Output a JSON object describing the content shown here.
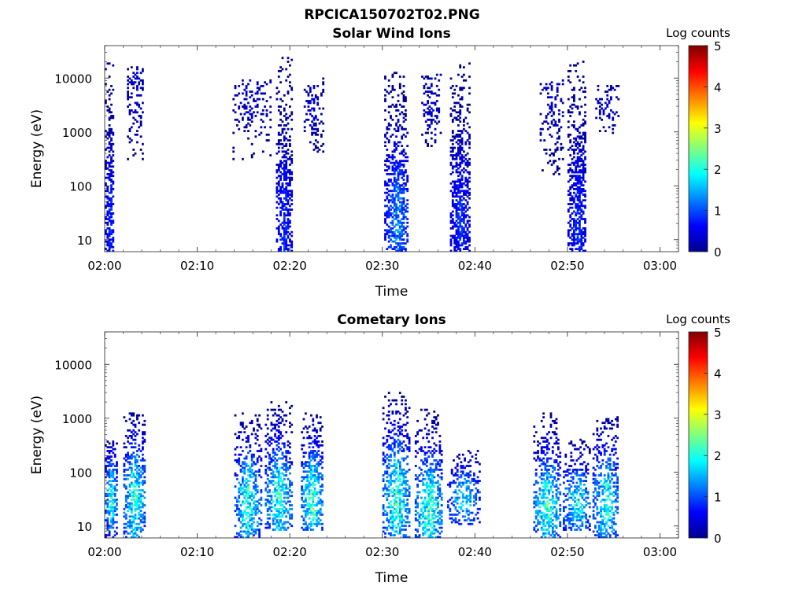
{
  "figure_title": "RPCICA150702T02.PNG",
  "chart_data": [
    {
      "type": "heatmap",
      "title": "Solar Wind Ions",
      "xlabel": "Time",
      "ylabel": "Energy (eV)",
      "x_tick_labels": [
        "02:00",
        "02:10",
        "02:20",
        "02:30",
        "02:40",
        "02:50",
        "03:00"
      ],
      "x_tick_minutes": [
        0,
        10,
        20,
        30,
        40,
        50,
        60
      ],
      "xlim_minutes": [
        0,
        62
      ],
      "y_scale": "log",
      "y_tick_labels": [
        "10",
        "100",
        "1000",
        "10000"
      ],
      "y_tick_values": [
        10,
        100,
        1000,
        10000
      ],
      "ylim": [
        6,
        40000
      ],
      "colorbar": {
        "label": "Log counts",
        "ticks": [
          "0",
          "1",
          "2",
          "3",
          "4",
          "5"
        ],
        "range": [
          0,
          5
        ],
        "colormap": "jet"
      },
      "bursts": [
        {
          "t_start": 0.0,
          "t_end": 1.0,
          "e_min": 6,
          "e_max": 20000,
          "e_peak": 20,
          "peak_log_counts": 1.0,
          "density": 0.75
        },
        {
          "t_start": 2.4,
          "t_end": 4.2,
          "e_min": 300,
          "e_max": 16000,
          "e_peak": 5000,
          "peak_log_counts": 0.5,
          "density": 0.35
        },
        {
          "t_start": 13.8,
          "t_end": 17.8,
          "e_min": 300,
          "e_max": 9000,
          "e_peak": 4000,
          "peak_log_counts": 0.5,
          "density": 0.25
        },
        {
          "t_start": 18.5,
          "t_end": 20.2,
          "e_min": 6,
          "e_max": 27000,
          "e_peak": 15,
          "peak_log_counts": 1.0,
          "density": 0.7
        },
        {
          "t_start": 21.5,
          "t_end": 23.5,
          "e_min": 400,
          "e_max": 10000,
          "e_peak": 3000,
          "peak_log_counts": 0.5,
          "density": 0.3
        },
        {
          "t_start": 30.2,
          "t_end": 32.8,
          "e_min": 6,
          "e_max": 14000,
          "e_peak": 20,
          "peak_log_counts": 1.5,
          "density": 0.65
        },
        {
          "t_start": 34.2,
          "t_end": 36.3,
          "e_min": 500,
          "e_max": 12000,
          "e_peak": 3000,
          "peak_log_counts": 0.5,
          "density": 0.3
        },
        {
          "t_start": 37.3,
          "t_end": 39.5,
          "e_min": 6,
          "e_max": 19000,
          "e_peak": 20,
          "peak_log_counts": 1.0,
          "density": 0.7
        },
        {
          "t_start": 47.0,
          "t_end": 49.5,
          "e_min": 150,
          "e_max": 10000,
          "e_peak": 3000,
          "peak_log_counts": 0.5,
          "density": 0.3
        },
        {
          "t_start": 50.0,
          "t_end": 52.0,
          "e_min": 6,
          "e_max": 25000,
          "e_peak": 20,
          "peak_log_counts": 1.0,
          "density": 0.7
        },
        {
          "t_start": 53.0,
          "t_end": 55.5,
          "e_min": 900,
          "e_max": 7000,
          "e_peak": 3000,
          "peak_log_counts": 0.5,
          "density": 0.3
        }
      ]
    },
    {
      "type": "heatmap",
      "title": "Cometary Ions",
      "xlabel": "Time",
      "ylabel": "Energy (eV)",
      "x_tick_labels": [
        "02:00",
        "02:10",
        "02:20",
        "02:30",
        "02:40",
        "02:50",
        "03:00"
      ],
      "x_tick_minutes": [
        0,
        10,
        20,
        30,
        40,
        50,
        60
      ],
      "xlim_minutes": [
        0,
        62
      ],
      "y_scale": "log",
      "y_tick_labels": [
        "10",
        "100",
        "1000",
        "10000"
      ],
      "y_tick_values": [
        10,
        100,
        1000,
        10000
      ],
      "ylim": [
        6,
        40000
      ],
      "colorbar": {
        "label": "Log counts",
        "ticks": [
          "0",
          "1",
          "2",
          "3",
          "4",
          "5"
        ],
        "range": [
          0,
          5
        ],
        "colormap": "jet"
      },
      "bursts": [
        {
          "t_start": 0.0,
          "t_end": 1.3,
          "e_min": 6,
          "e_max": 400,
          "e_peak": 30,
          "peak_log_counts": 2.3,
          "density": 0.7
        },
        {
          "t_start": 2.0,
          "t_end": 4.3,
          "e_min": 6,
          "e_max": 1300,
          "e_peak": 30,
          "peak_log_counts": 2.5,
          "density": 0.65
        },
        {
          "t_start": 14.0,
          "t_end": 16.8,
          "e_min": 6,
          "e_max": 1200,
          "e_peak": 25,
          "peak_log_counts": 2.4,
          "density": 0.6
        },
        {
          "t_start": 17.3,
          "t_end": 20.2,
          "e_min": 8,
          "e_max": 2000,
          "e_peak": 30,
          "peak_log_counts": 2.4,
          "density": 0.6
        },
        {
          "t_start": 21.2,
          "t_end": 23.5,
          "e_min": 8,
          "e_max": 1300,
          "e_peak": 30,
          "peak_log_counts": 2.6,
          "density": 0.65
        },
        {
          "t_start": 30.0,
          "t_end": 33.0,
          "e_min": 6,
          "e_max": 3000,
          "e_peak": 30,
          "peak_log_counts": 2.5,
          "density": 0.55
        },
        {
          "t_start": 33.5,
          "t_end": 36.5,
          "e_min": 6,
          "e_max": 1500,
          "e_peak": 20,
          "peak_log_counts": 2.5,
          "density": 0.6
        },
        {
          "t_start": 37.0,
          "t_end": 40.5,
          "e_min": 10,
          "e_max": 250,
          "e_peak": 30,
          "peak_log_counts": 2.0,
          "density": 0.45
        },
        {
          "t_start": 46.3,
          "t_end": 49.2,
          "e_min": 6,
          "e_max": 1200,
          "e_peak": 20,
          "peak_log_counts": 2.5,
          "density": 0.6
        },
        {
          "t_start": 49.5,
          "t_end": 52.5,
          "e_min": 8,
          "e_max": 400,
          "e_peak": 25,
          "peak_log_counts": 2.2,
          "density": 0.55
        },
        {
          "t_start": 52.7,
          "t_end": 55.5,
          "e_min": 6,
          "e_max": 1100,
          "e_peak": 25,
          "peak_log_counts": 2.4,
          "density": 0.6
        }
      ]
    }
  ]
}
